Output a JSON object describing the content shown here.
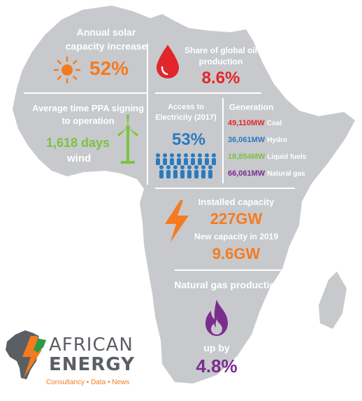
{
  "colors": {
    "map": "#c7c9cc",
    "orange": "#f47b20",
    "red": "#e2262c",
    "green": "#7dc242",
    "blue": "#2a7bbf",
    "purple": "#7b2d8e",
    "logo_green": "#2e9a49",
    "logo_grey": "#5b5f64"
  },
  "solar": {
    "label": "Annual solar capacity increase",
    "value": "52%",
    "icon": "sun-icon"
  },
  "oil": {
    "label": "Share of global oil production",
    "value": "8.6%",
    "icon": "oil-drop-icon"
  },
  "ppa": {
    "label": "Average time PPA signing to operation",
    "value": "1,618 days",
    "suffix": "wind",
    "icon": "wind-turbine-icon"
  },
  "access": {
    "label": "Access to Electricity (2017)",
    "value": "53%",
    "icon": "people-group-icon"
  },
  "generation": {
    "title": "Generation",
    "items": [
      {
        "value": "49,110MW",
        "label": "Coal",
        "color": "#e2262c"
      },
      {
        "value": "36,061MW",
        "label": "Hydro",
        "color": "#2a7bbf"
      },
      {
        "value": "18,854MW",
        "label": "Liquid fuels",
        "color": "#7dc242"
      },
      {
        "value": "66,061MW",
        "label": "Natural gas",
        "color": "#7b2d8e"
      }
    ]
  },
  "capacity": {
    "label": "Installed capacity",
    "value": "227GW",
    "new_label": "New capacity in 2019",
    "new_value": "9.6GW",
    "icon": "lightning-bolt-icon"
  },
  "gas": {
    "label": "Natural gas production",
    "sub": "up by",
    "value": "4.8%",
    "icon": "flame-icon"
  },
  "logo": {
    "line1": "AFRICAN",
    "line2": "ENERGY",
    "tagline": "Consultancy • Data • News"
  }
}
